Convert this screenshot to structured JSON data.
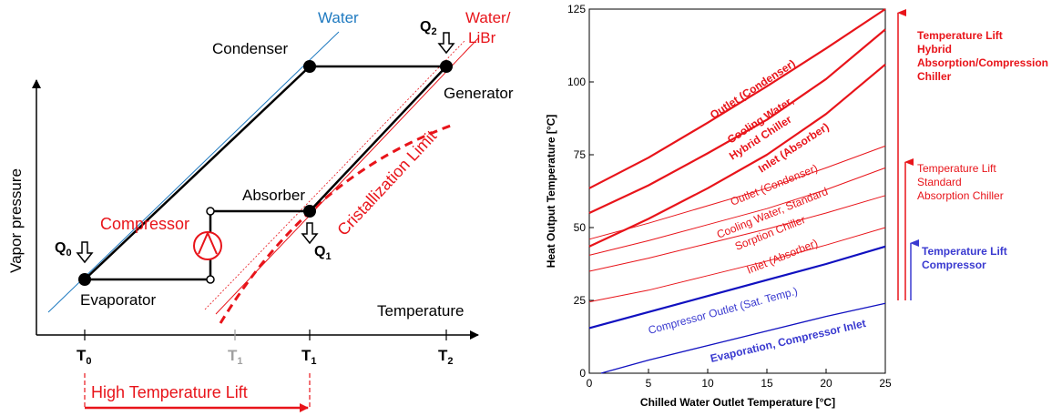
{
  "left_diagram": {
    "y_axis_label": "Vapor pressure",
    "x_axis_label": "Temperature",
    "water_label": "Water",
    "water_libr_label_line1": "Water/",
    "water_libr_label_line2": "LiBr",
    "condenser_label": "Condenser",
    "generator_label": "Generator",
    "absorber_label": "Absorber",
    "evaporator_label": "Evaporator",
    "compressor_label": "Compressor",
    "cristallization_label": "Cristallization Limit",
    "q0": "Q",
    "q0_sub": "0",
    "q1": "Q",
    "q1_sub": "1",
    "q2": "Q",
    "q2_sub": "2",
    "t0": "T",
    "t0_sub": "0",
    "t1_grey": "T",
    "t1_grey_sub": "1",
    "t1": "T",
    "t1_sub": "1",
    "t2": "T",
    "t2_sub": "2",
    "high_lift_label": "High Temperature Lift",
    "colors": {
      "black": "#000000",
      "red": "#e8141a",
      "blue": "#1f7ac0",
      "grey": "#a0a0a0"
    }
  },
  "chart_data": {
    "type": "line",
    "xlabel": "Chilled Water Outlet Temperature [°C]",
    "ylabel": "Heat Output Temperature [°C]",
    "xlim": [
      0,
      25
    ],
    "ylim": [
      0,
      125
    ],
    "xticks": [
      0,
      5,
      10,
      15,
      20,
      25
    ],
    "yticks": [
      0,
      25,
      50,
      75,
      100,
      125
    ],
    "series": [
      {
        "name": "Outlet (Condenser)",
        "group": "hybrid",
        "color": "#e8141a",
        "points": [
          [
            0,
            63.5
          ],
          [
            5,
            74
          ],
          [
            10,
            86
          ],
          [
            15,
            98.5
          ],
          [
            20,
            111.5
          ],
          [
            25,
            125
          ]
        ]
      },
      {
        "name": "Cooling Water, Hybrid Chiller",
        "group": "hybrid",
        "color": "#e8141a",
        "points": [
          [
            0,
            55
          ],
          [
            5,
            64.5
          ],
          [
            10,
            75.5
          ],
          [
            15,
            87
          ],
          [
            20,
            101
          ],
          [
            25,
            118
          ]
        ]
      },
      {
        "name": "Inlet (Absorber)",
        "group": "hybrid",
        "color": "#e8141a",
        "points": [
          [
            0,
            43.5
          ],
          [
            5,
            53
          ],
          [
            10,
            63.5
          ],
          [
            15,
            75
          ],
          [
            20,
            89
          ],
          [
            25,
            106
          ]
        ]
      },
      {
        "name": "Outlet (Condenser)",
        "group": "standard",
        "color": "#e8141a",
        "points": [
          [
            0,
            46
          ],
          [
            5,
            51.5
          ],
          [
            10,
            57.5
          ],
          [
            15,
            63.5
          ],
          [
            20,
            70.5
          ],
          [
            25,
            78
          ]
        ]
      },
      {
        "name": "Cooling Water, Standard Sorption Chiller",
        "group": "standard",
        "color": "#e8141a",
        "points": [
          [
            0,
            40.5
          ],
          [
            5,
            45.5
          ],
          [
            10,
            51
          ],
          [
            15,
            56.5
          ],
          [
            20,
            63
          ],
          [
            25,
            70.5
          ]
        ]
      },
      {
        "name": "Inlet (Absorber)",
        "group": "standard",
        "color": "#e8141a",
        "points": [
          [
            0,
            35
          ],
          [
            5,
            39.5
          ],
          [
            10,
            44.5
          ],
          [
            15,
            49.5
          ],
          [
            20,
            55
          ],
          [
            25,
            61
          ]
        ]
      },
      {
        "name": "Inlet (Absorber)",
        "group": "standard2",
        "color": "#e8141a",
        "points": [
          [
            0,
            24.5
          ],
          [
            5,
            28.5
          ],
          [
            10,
            33.5
          ],
          [
            15,
            38.5
          ],
          [
            20,
            44
          ],
          [
            25,
            50
          ]
        ]
      },
      {
        "name": "Compressor Outlet (Sat. Temp.)",
        "group": "compressor",
        "color": "#1010c0",
        "points": [
          [
            0,
            15.5
          ],
          [
            5,
            21
          ],
          [
            10,
            26.5
          ],
          [
            15,
            32
          ],
          [
            20,
            37.5
          ],
          [
            25,
            43.5
          ]
        ]
      },
      {
        "name": "Evaporation, Compressor Inlet",
        "group": "evaporation",
        "color": "#1010c0",
        "points": [
          [
            1,
            0
          ],
          [
            5,
            4.5
          ],
          [
            10,
            9.5
          ],
          [
            15,
            14.5
          ],
          [
            20,
            19.5
          ],
          [
            25,
            24
          ]
        ]
      }
    ],
    "curve_labels": {
      "hybrid_outlet": "Outlet (Condenser)",
      "hybrid_cooling_1": "Cooling Water,",
      "hybrid_cooling_2": "Hybrid Chiller",
      "hybrid_inlet": "Inlet (Absorber)",
      "std_outlet": "Outlet (Condenser)",
      "std_cooling_1": "Cooling Water, Standard",
      "std_cooling_2": "Sorption Chiller",
      "std_inlet": "Inlet (Absorber)",
      "compressor_outlet": "Compressor Outlet (Sat. Temp.)",
      "evaporation": "Evaporation, Compressor Inlet"
    },
    "legend": {
      "hybrid_1": "Temperature Lift",
      "hybrid_2": "Hybrid",
      "hybrid_3": "Absorption/Compression",
      "hybrid_4": "Chiller",
      "standard_1": "Temperature Lift",
      "standard_2": "Standard",
      "standard_3": "Absorption Chiller",
      "compressor_1": "Temperature Lift",
      "compressor_2": "Compressor"
    }
  }
}
